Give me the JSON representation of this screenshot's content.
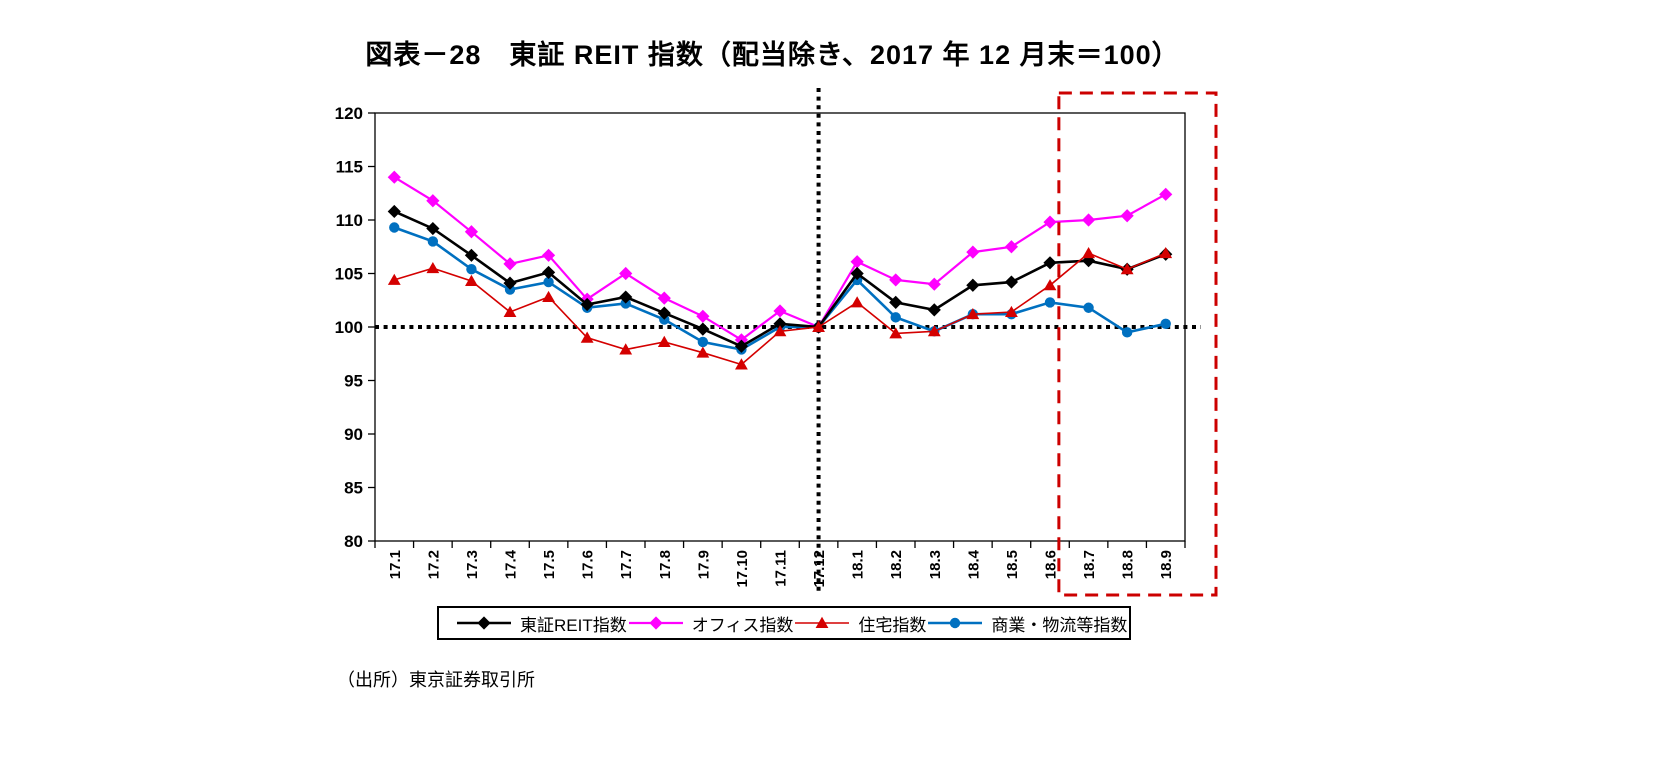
{
  "source": "（出所）東京証券取引所",
  "chart_data": {
    "type": "line",
    "title": "図表－28　東証 REIT 指数（配当除き、2017 年 12 月末＝100）",
    "xlabel": "",
    "ylabel": "",
    "ylim": [
      80,
      120
    ],
    "yticks": [
      80,
      85,
      90,
      95,
      100,
      105,
      110,
      115,
      120
    ],
    "grid": false,
    "legend_position": "bottom",
    "reference_line_y": 100,
    "reference_line_x": "17.12",
    "highlight": {
      "from": "18.7",
      "to": "18.9",
      "color": "#CC0000"
    },
    "categories": [
      "17.1",
      "17.2",
      "17.3",
      "17.4",
      "17.5",
      "17.6",
      "17.7",
      "17.8",
      "17.9",
      "17.10",
      "17.11",
      "17.12",
      "18.1",
      "18.2",
      "18.3",
      "18.4",
      "18.5",
      "18.6",
      "18.7",
      "18.8",
      "18.9"
    ],
    "series": [
      {
        "id": "tse-reit",
        "name": "東証REIT指数",
        "color": "#000000",
        "marker": "diamond",
        "line_width": 2.6,
        "values": [
          110.8,
          109.2,
          106.7,
          104.1,
          105.1,
          102.1,
          102.8,
          101.3,
          99.8,
          98.2,
          100.3,
          100,
          105,
          102.3,
          101.6,
          103.9,
          104.2,
          106,
          106.2,
          105.4,
          106.8
        ]
      },
      {
        "id": "office",
        "name": "オフィス指数",
        "color": "#FF00FF",
        "marker": "diamond",
        "line_width": 2.2,
        "values": [
          114,
          111.8,
          108.9,
          105.9,
          106.7,
          102.6,
          105,
          102.7,
          101,
          98.8,
          101.5,
          100,
          106.1,
          104.4,
          104,
          107,
          107.5,
          109.8,
          110,
          110.4,
          112.4
        ]
      },
      {
        "id": "residential",
        "name": "住宅指数",
        "color": "#D40000",
        "marker": "triangle",
        "line_width": 1.6,
        "values": [
          104.4,
          105.5,
          104.3,
          101.4,
          102.8,
          99,
          97.9,
          98.6,
          97.6,
          96.5,
          99.6,
          100,
          102.3,
          99.4,
          99.6,
          101.2,
          101.4,
          103.9,
          106.9,
          105.4,
          106.9
        ]
      },
      {
        "id": "commercial",
        "name": "商業・物流等指数",
        "color": "#0070C0",
        "marker": "circle",
        "line_width": 2.6,
        "values": [
          109.3,
          108,
          105.4,
          103.5,
          104.2,
          101.8,
          102.2,
          100.7,
          98.6,
          97.9,
          100,
          100,
          104.4,
          100.9,
          99.6,
          101.2,
          101.2,
          102.3,
          101.8,
          99.5,
          100.3
        ]
      }
    ]
  }
}
